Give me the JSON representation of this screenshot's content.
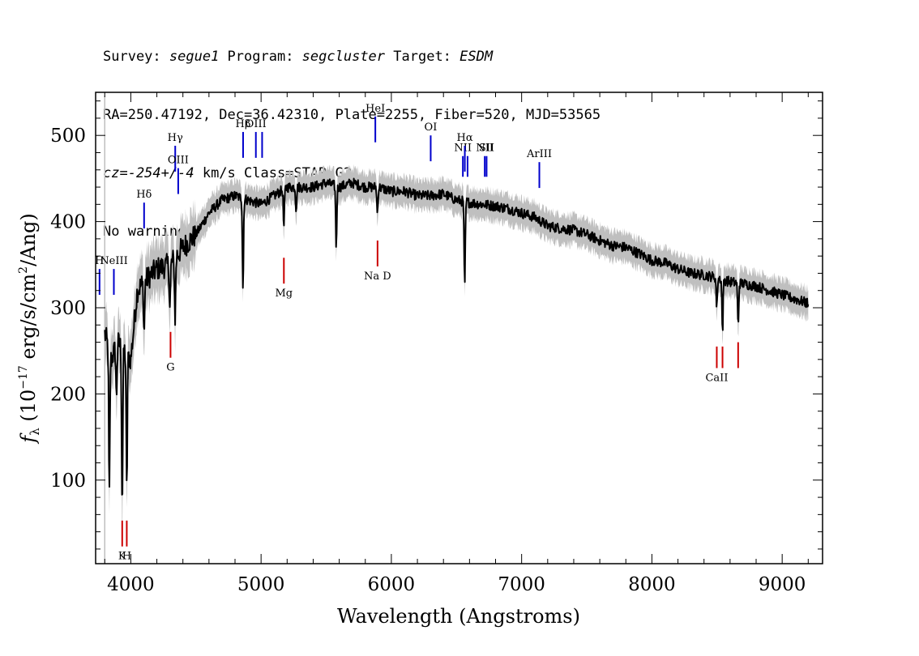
{
  "header": {
    "line1": {
      "survey_label": "Survey: ",
      "survey": "segue1",
      "program_label": " Program: ",
      "program": "segcluster",
      "target_label": " Target: ",
      "target": "ESDM"
    },
    "line2": "RA=250.47192, Dec=36.42310, Plate=2255, Fiber=520, MJD=53565",
    "line3": {
      "cz": "cz=-254+/-4",
      "rest": " km/s Class=STAR G2"
    },
    "line4": "No warnings."
  },
  "chart_data": {
    "type": "line",
    "xlabel": "Wavelength (Angstroms)",
    "ylabel_parts": {
      "f": "f",
      "sub": "λ",
      "open": " (10",
      "exp": "−17",
      "mid": " erg/s/cm",
      "exp2": "2",
      "close": "/Ang)"
    },
    "xlim": [
      3730,
      9310
    ],
    "ylim": [
      3,
      550
    ],
    "xticks": [
      4000,
      5000,
      6000,
      7000,
      8000,
      9000
    ],
    "yticks": [
      100,
      200,
      300,
      400,
      500
    ],
    "grid": false,
    "colors": {
      "flux": "#000000",
      "error_band": "#bfbfbf",
      "emission": "#0000cc",
      "absorption": "#cc0000"
    },
    "continuum": {
      "x": [
        3800,
        3850,
        3900,
        3950,
        4000,
        4050,
        4100,
        4200,
        4300,
        4400,
        4500,
        4600,
        4700,
        4800,
        4900,
        5000,
        5100,
        5200,
        5300,
        5400,
        5500,
        5600,
        5700,
        5800,
        5900,
        6000,
        6100,
        6200,
        6300,
        6400,
        6500,
        6600,
        6700,
        6800,
        6900,
        7000,
        7100,
        7200,
        7300,
        7400,
        7500,
        7600,
        7700,
        7800,
        7900,
        8000,
        8100,
        8200,
        8300,
        8400,
        8500,
        8600,
        8700,
        8800,
        8900,
        9000,
        9100,
        9200
      ],
      "y": [
        270,
        240,
        260,
        250,
        240,
        320,
        330,
        345,
        350,
        370,
        385,
        410,
        425,
        430,
        425,
        420,
        430,
        440,
        440,
        440,
        445,
        440,
        445,
        440,
        440,
        435,
        435,
        430,
        430,
        432,
        425,
        422,
        420,
        418,
        415,
        410,
        405,
        395,
        392,
        390,
        385,
        378,
        372,
        370,
        363,
        355,
        352,
        345,
        340,
        338,
        335,
        330,
        328,
        325,
        320,
        315,
        310,
        305
      ]
    },
    "absorption_features": [
      {
        "x": 3835,
        "depth": 170
      },
      {
        "x": 3890,
        "depth": 60
      },
      {
        "x": 3934,
        "depth": 185
      },
      {
        "x": 3969,
        "depth": 160
      },
      {
        "x": 4102,
        "depth": 60
      },
      {
        "x": 4300,
        "depth": 50
      },
      {
        "x": 4340,
        "depth": 70
      },
      {
        "x": 4861,
        "depth": 105
      },
      {
        "x": 5175,
        "depth": 45
      },
      {
        "x": 5269,
        "depth": 25
      },
      {
        "x": 5577,
        "depth": 70
      },
      {
        "x": 5893,
        "depth": 30
      },
      {
        "x": 6563,
        "depth": 100
      },
      {
        "x": 8498,
        "depth": 35
      },
      {
        "x": 8542,
        "depth": 60
      },
      {
        "x": 8662,
        "depth": 50
      }
    ],
    "emission_lines": [
      {
        "label": "H",
        "x": 3760,
        "y_bottom": 315,
        "y_top": 345
      },
      {
        "label": "NeIII",
        "x": 3870,
        "y_bottom": 315,
        "y_top": 345
      },
      {
        "label": "Hδ",
        "x": 4102,
        "y_bottom": 392,
        "y_top": 422
      },
      {
        "label": "Hγ",
        "x": 4341,
        "y_bottom": 458,
        "y_top": 488
      },
      {
        "label": "OIII",
        "x": 4364,
        "y_bottom": 432,
        "y_top": 462
      },
      {
        "label": "Hβ",
        "x": 4862,
        "y_bottom": 474,
        "y_top": 504
      },
      {
        "label": "OIII",
        "x": 4960,
        "y_bottom": 474,
        "y_top": 504
      },
      {
        "label": "",
        "x": 5008,
        "y_bottom": 474,
        "y_top": 504
      },
      {
        "label": "HeI",
        "x": 5877,
        "y_bottom": 492,
        "y_top": 522
      },
      {
        "label": "OI",
        "x": 6302,
        "y_bottom": 470,
        "y_top": 500
      },
      {
        "label": "NII",
        "x": 6549,
        "y_bottom": 452,
        "y_top": 476
      },
      {
        "label": "Hα",
        "x": 6564,
        "y_bottom": 458,
        "y_top": 488
      },
      {
        "label": "",
        "x": 6585,
        "y_bottom": 452,
        "y_top": 476
      },
      {
        "label": "NII",
        "x": 6717,
        "y_bottom": 452,
        "y_top": 476
      },
      {
        "label": "SII",
        "x": 6731,
        "y_bottom": 452,
        "y_top": 476
      },
      {
        "label": "ArIII",
        "x": 7136,
        "y_bottom": 439,
        "y_top": 469
      }
    ],
    "absorption_lines": [
      {
        "label": "K",
        "x": 3934,
        "y_bottom": 23,
        "y_top": 53
      },
      {
        "label": "H",
        "x": 3969,
        "y_bottom": 23,
        "y_top": 53
      },
      {
        "label": "G",
        "x": 4305,
        "y_bottom": 242,
        "y_top": 272
      },
      {
        "label": "Mg",
        "x": 5175,
        "y_bottom": 328,
        "y_top": 358
      },
      {
        "label": "Na D",
        "x": 5894,
        "y_bottom": 348,
        "y_top": 378
      },
      {
        "label": "CaII",
        "x": 8498,
        "y_bottom": 230,
        "y_top": 255
      },
      {
        "label": "",
        "x": 8542,
        "y_bottom": 230,
        "y_top": 255
      },
      {
        "label": "",
        "x": 8662,
        "y_bottom": 230,
        "y_top": 260
      }
    ]
  }
}
